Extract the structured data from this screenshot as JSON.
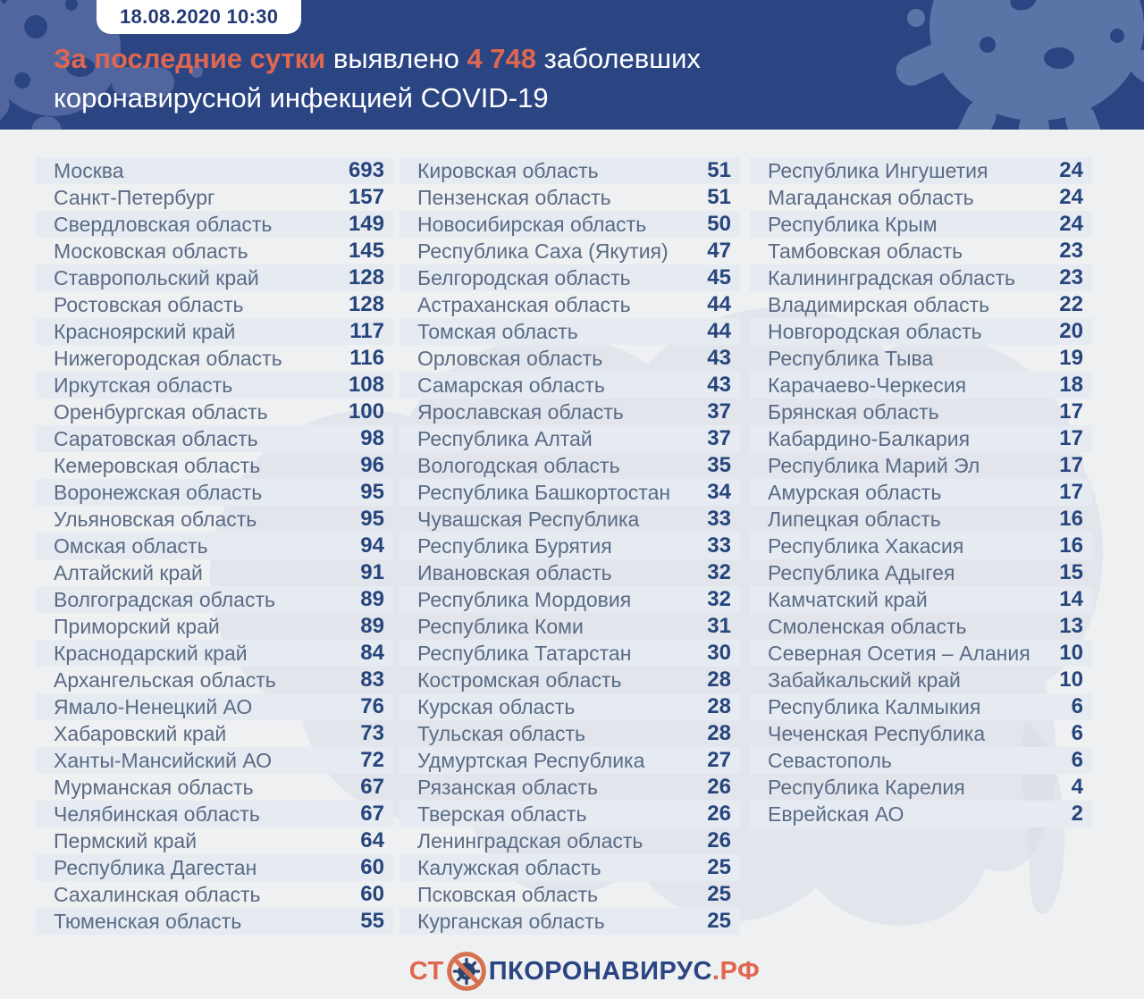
{
  "header": {
    "date_badge": "18.08.2020 10:30",
    "title": {
      "accent1": "За последние сутки",
      "mid": "выявлено",
      "count": "4 748",
      "tail": "заболевших",
      "line2": "коронавирусной инфекцией COVID-19"
    }
  },
  "chart_data": {
    "type": "table",
    "title": "За последние сутки выявлено 4 748 заболевших коронавирусной инфекцией COVID-19",
    "timestamp": "18.08.2020 10:30",
    "total_new_cases": 4748,
    "value_meaning": "новые случаи COVID-19 за сутки по регионам",
    "layout": "three-column striped list",
    "columns": [
      {
        "rows": [
          [
            "Москва",
            693
          ],
          [
            "Санкт-Петербург",
            157
          ],
          [
            "Свердловская область",
            149
          ],
          [
            "Московская область",
            145
          ],
          [
            "Ставропольский край",
            128
          ],
          [
            "Ростовская область",
            128
          ],
          [
            "Красноярский край",
            117
          ],
          [
            "Нижегородская область",
            116
          ],
          [
            "Иркутская область",
            108
          ],
          [
            "Оренбургская область",
            100
          ],
          [
            "Саратовская область",
            98
          ],
          [
            "Кемеровская область",
            96
          ],
          [
            "Воронежская область",
            95
          ],
          [
            "Ульяновская область",
            95
          ],
          [
            "Омская область",
            94
          ],
          [
            "Алтайский край",
            91
          ],
          [
            "Волгоградская область",
            89
          ],
          [
            "Приморский край",
            89
          ],
          [
            "Краснодарский край",
            84
          ],
          [
            "Архангельская область",
            83
          ],
          [
            "Ямало-Ненецкий АО",
            76
          ],
          [
            "Хабаровский край",
            73
          ],
          [
            "Ханты-Мансийский АО",
            72
          ],
          [
            "Мурманская область",
            67
          ],
          [
            "Челябинская область",
            67
          ],
          [
            "Пермский край",
            64
          ],
          [
            "Республика Дагестан",
            60
          ],
          [
            "Сахалинская область",
            60
          ],
          [
            "Тюменская область",
            55
          ]
        ]
      },
      {
        "rows": [
          [
            "Кировская область",
            51
          ],
          [
            "Пензенская область",
            51
          ],
          [
            "Новосибирская область",
            50
          ],
          [
            "Республика Саха (Якутия)",
            47
          ],
          [
            "Белгородская область",
            45
          ],
          [
            "Астраханская область",
            44
          ],
          [
            "Томская область",
            44
          ],
          [
            "Орловская область",
            43
          ],
          [
            "Самарская область",
            43
          ],
          [
            "Ярославская область",
            37
          ],
          [
            "Республика Алтай",
            37
          ],
          [
            "Вологодская область",
            35
          ],
          [
            "Республика Башкортостан",
            34
          ],
          [
            "Чувашская Республика",
            33
          ],
          [
            "Республика Бурятия",
            33
          ],
          [
            "Ивановская область",
            32
          ],
          [
            "Республика Мордовия",
            32
          ],
          [
            "Республика Коми",
            31
          ],
          [
            "Республика Татарстан",
            30
          ],
          [
            "Костромская область",
            28
          ],
          [
            "Курская область",
            28
          ],
          [
            "Тульская область",
            28
          ],
          [
            "Удмуртская Республика",
            27
          ],
          [
            "Рязанская область",
            26
          ],
          [
            "Тверская область",
            26
          ],
          [
            "Ленинградская область",
            26
          ],
          [
            "Калужская область",
            25
          ],
          [
            "Псковская область",
            25
          ],
          [
            "Курганская область",
            25
          ]
        ]
      },
      {
        "rows": [
          [
            "Республика Ингушетия",
            24
          ],
          [
            "Магаданская область",
            24
          ],
          [
            "Республика Крым",
            24
          ],
          [
            "Тамбовская область",
            23
          ],
          [
            "Калининградская область",
            23
          ],
          [
            "Владимирская область",
            22
          ],
          [
            "Новгородская область",
            20
          ],
          [
            "Республика Тыва",
            19
          ],
          [
            "Карачаево-Черкесия",
            18
          ],
          [
            "Брянская область",
            17
          ],
          [
            "Кабардино-Балкария",
            17
          ],
          [
            "Республика Марий Эл",
            17
          ],
          [
            "Амурская область",
            17
          ],
          [
            "Липецкая область",
            16
          ],
          [
            "Республика Хакасия",
            16
          ],
          [
            "Республика Адыгея",
            15
          ],
          [
            "Камчатский край",
            14
          ],
          [
            "Смоленская область",
            13
          ],
          [
            "Северная Осетия – Алания",
            10
          ],
          [
            "Забайкальский край",
            10
          ],
          [
            "Республика Калмыкия",
            6
          ],
          [
            "Чеченская Республика",
            6
          ],
          [
            "Севастополь",
            6
          ],
          [
            "Республика Карелия",
            4
          ],
          [
            "Еврейская АО",
            2
          ]
        ]
      }
    ]
  },
  "footer": {
    "logo_prefix": "СТ",
    "logo_middle": "ПКОРОНАВИРУС",
    "logo_suffix": ".РФ"
  },
  "colors": {
    "header_bg": "#2b4583",
    "accent_orange": "#e0674f",
    "row_stripe": "#e6ebf2",
    "region_text": "#5a6b85",
    "number_text": "#26457c",
    "page_bg": "#eff0f2"
  }
}
